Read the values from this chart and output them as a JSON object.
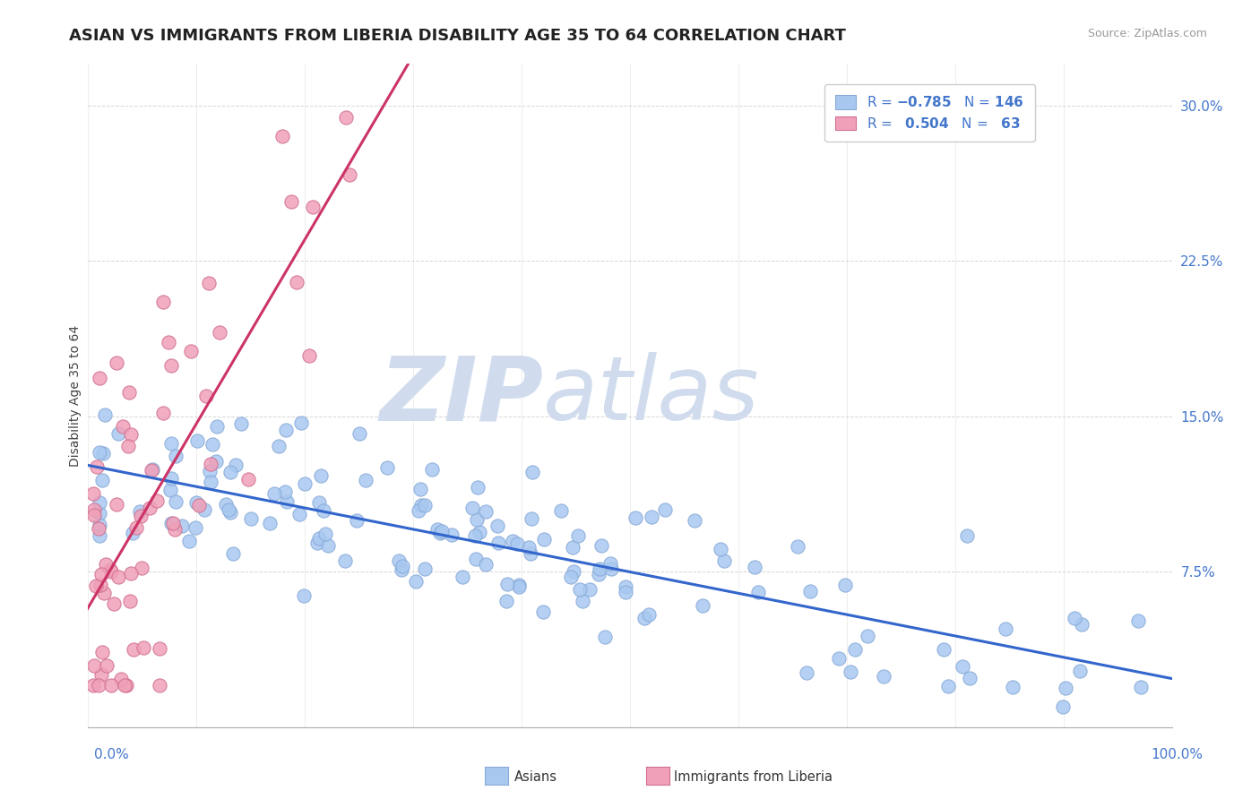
{
  "title": "ASIAN VS IMMIGRANTS FROM LIBERIA DISABILITY AGE 35 TO 64 CORRELATION CHART",
  "source": "Source: ZipAtlas.com",
  "ylabel": "Disability Age 35 to 64",
  "ytick_values": [
    0.0,
    0.075,
    0.15,
    0.225,
    0.3
  ],
  "ytick_labels": [
    "",
    "7.5%",
    "15.0%",
    "22.5%",
    "30.0%"
  ],
  "xlim": [
    0.0,
    1.0
  ],
  "ylim": [
    0.0,
    0.32
  ],
  "color_asian": "#a8c8f0",
  "color_asian_edge": "#88aad8",
  "color_liberia": "#f0a0b8",
  "color_liberia_edge": "#d07090",
  "color_asian_line": "#3366cc",
  "color_liberia_line": "#cc3366",
  "color_tick_label": "#4477cc",
  "watermark_zip": "ZIP",
  "watermark_atlas": "atlas",
  "watermark_color": "#d0dcee",
  "background_color": "#ffffff",
  "grid_color": "#cccccc",
  "title_fontsize": 13,
  "axis_label_fontsize": 10,
  "tick_fontsize": 11,
  "source_fontsize": 9
}
